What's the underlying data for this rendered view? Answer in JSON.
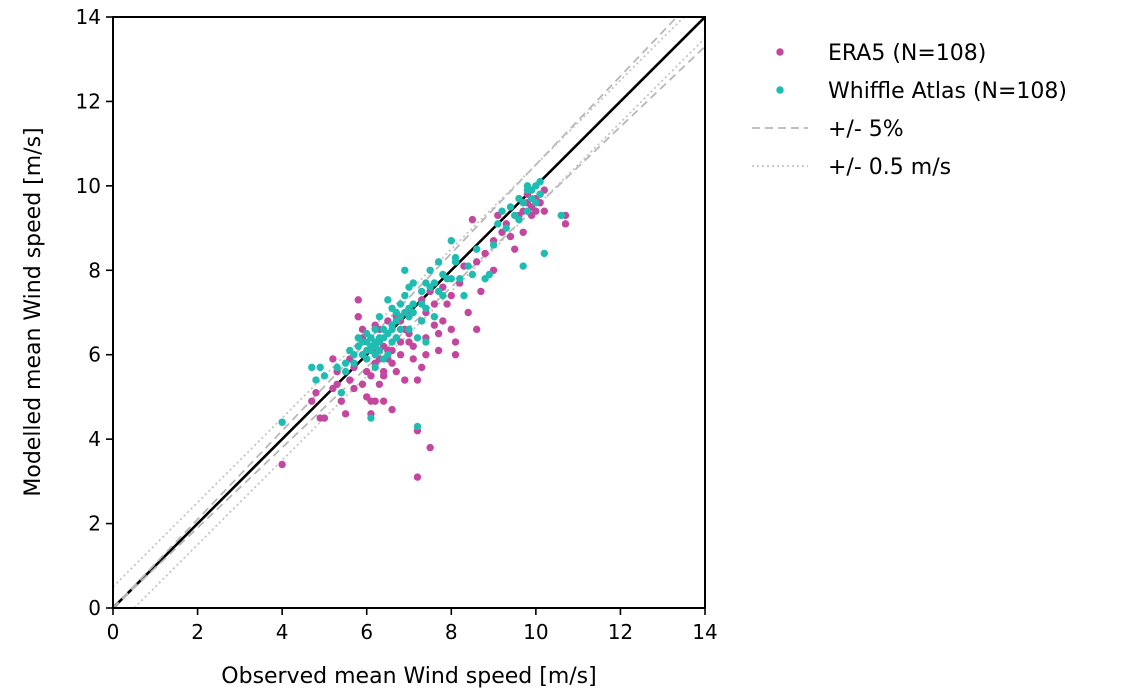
{
  "chart_data": {
    "type": "scatter",
    "title": "",
    "xlabel": "Observed mean Wind speed [m/s]",
    "ylabel": "Modelled mean Wind speed [m/s]",
    "xlim": [
      0,
      14
    ],
    "ylim": [
      0,
      14
    ],
    "xticks": [
      "0",
      "2",
      "4",
      "6",
      "8",
      "10",
      "12",
      "14"
    ],
    "yticks": [
      "0",
      "2",
      "4",
      "6",
      "8",
      "10",
      "12",
      "14"
    ],
    "grid": false,
    "legend_position": "outside-right-top",
    "reference_lines": [
      {
        "name": "1:1",
        "kind": "identity",
        "color": "#000000",
        "style": "solid"
      },
      {
        "name": "+/- 5%",
        "kind": "relative",
        "value": 0.05,
        "color": "#b8b8b8",
        "style": "dashed"
      },
      {
        "name": "+/- 0.5 m/s",
        "kind": "absolute",
        "value": 0.5,
        "color": "#c4c4c4",
        "style": "dotted"
      }
    ],
    "legend": [
      {
        "label": "ERA5 (N=108)",
        "marker": "dot",
        "color": "#c4479f"
      },
      {
        "label": "Whiffle Atlas (N=108)",
        "marker": "dot",
        "color": "#1fbdb1"
      },
      {
        "label": "+/- 5%",
        "marker": "dashed-line",
        "color": "#b8b8b8"
      },
      {
        "label": "+/- 0.5 m/s",
        "marker": "dotted-line",
        "color": "#c4c4c4"
      }
    ],
    "series": [
      {
        "name": "ERA5 (N=108)",
        "color": "#c4479f",
        "points": [
          [
            4.0,
            3.4
          ],
          [
            4.7,
            4.9
          ],
          [
            4.8,
            5.1
          ],
          [
            4.9,
            4.5
          ],
          [
            5.0,
            4.5
          ],
          [
            5.2,
            5.2
          ],
          [
            5.3,
            5.6
          ],
          [
            5.3,
            5.3
          ],
          [
            5.4,
            4.9
          ],
          [
            5.5,
            4.6
          ],
          [
            5.6,
            5.4
          ],
          [
            5.7,
            5.2
          ],
          [
            5.7,
            5.7
          ],
          [
            5.8,
            7.3
          ],
          [
            5.8,
            6.9
          ],
          [
            5.9,
            6.6
          ],
          [
            5.9,
            5.3
          ],
          [
            6.0,
            5.6
          ],
          [
            6.0,
            5.9
          ],
          [
            6.0,
            5.0
          ],
          [
            6.1,
            4.6
          ],
          [
            6.1,
            4.9
          ],
          [
            6.1,
            5.5
          ],
          [
            6.2,
            5.8
          ],
          [
            6.2,
            6.1
          ],
          [
            6.2,
            4.9
          ],
          [
            6.3,
            5.9
          ],
          [
            6.3,
            5.3
          ],
          [
            6.3,
            6.6
          ],
          [
            6.4,
            5.5
          ],
          [
            6.4,
            6.2
          ],
          [
            6.4,
            4.9
          ],
          [
            6.5,
            5.9
          ],
          [
            6.5,
            6.8
          ],
          [
            6.6,
            5.8
          ],
          [
            6.6,
            6.1
          ],
          [
            6.6,
            4.7
          ],
          [
            6.7,
            6.4
          ],
          [
            6.7,
            6.9
          ],
          [
            6.8,
            6.0
          ],
          [
            6.8,
            6.3
          ],
          [
            6.9,
            5.4
          ],
          [
            7.0,
            7.0
          ],
          [
            7.0,
            6.5
          ],
          [
            7.1,
            6.2
          ],
          [
            7.1,
            5.9
          ],
          [
            7.2,
            5.4
          ],
          [
            7.2,
            4.2
          ],
          [
            7.2,
            3.1
          ],
          [
            7.3,
            6.8
          ],
          [
            7.3,
            5.7
          ],
          [
            7.4,
            6.4
          ],
          [
            7.4,
            6.0
          ],
          [
            7.5,
            3.8
          ],
          [
            7.5,
            7.5
          ],
          [
            7.6,
            6.7
          ],
          [
            7.7,
            6.5
          ],
          [
            7.7,
            6.1
          ],
          [
            7.8,
            6.8
          ],
          [
            7.9,
            7.2
          ],
          [
            8.0,
            6.6
          ],
          [
            8.1,
            6.3
          ],
          [
            8.1,
            6.0
          ],
          [
            8.2,
            7.7
          ],
          [
            8.4,
            7.0
          ],
          [
            8.5,
            9.2
          ],
          [
            8.6,
            6.6
          ],
          [
            8.7,
            7.5
          ],
          [
            8.8,
            8.4
          ],
          [
            9.0,
            8.0
          ],
          [
            9.2,
            8.9
          ],
          [
            9.4,
            8.8
          ],
          [
            9.5,
            8.5
          ],
          [
            9.6,
            9.3
          ],
          [
            9.7,
            9.4
          ],
          [
            9.7,
            8.9
          ],
          [
            9.8,
            9.6
          ],
          [
            9.8,
            9.8
          ],
          [
            9.9,
            9.5
          ],
          [
            9.9,
            9.3
          ],
          [
            10.0,
            9.7
          ],
          [
            10.0,
            9.4
          ],
          [
            10.1,
            9.8
          ],
          [
            10.1,
            9.6
          ],
          [
            10.2,
            9.4
          ],
          [
            10.2,
            9.9
          ],
          [
            10.7,
            9.1
          ],
          [
            10.7,
            9.3
          ],
          [
            6.5,
            6.1
          ],
          [
            6.9,
            6.6
          ],
          [
            7.6,
            7.2
          ],
          [
            8.3,
            8.1
          ],
          [
            5.9,
            6.4
          ],
          [
            6.2,
            6.7
          ],
          [
            7.0,
            6.3
          ],
          [
            7.4,
            7.0
          ],
          [
            5.6,
            5.9
          ],
          [
            6.7,
            5.6
          ],
          [
            8.0,
            7.4
          ],
          [
            9.1,
            9.3
          ],
          [
            9.3,
            9.1
          ],
          [
            6.4,
            5.6
          ],
          [
            7.8,
            7.6
          ],
          [
            5.2,
            5.9
          ],
          [
            6.8,
            6.8
          ],
          [
            7.3,
            7.3
          ],
          [
            8.6,
            8.2
          ],
          [
            9.0,
            8.7
          ]
        ]
      },
      {
        "name": "Whiffle Atlas (N=108)",
        "color": "#1fbdb1",
        "points": [
          [
            4.0,
            4.4
          ],
          [
            4.7,
            5.7
          ],
          [
            4.8,
            5.4
          ],
          [
            4.9,
            5.7
          ],
          [
            5.0,
            5.5
          ],
          [
            5.3,
            5.7
          ],
          [
            5.4,
            5.1
          ],
          [
            5.5,
            5.6
          ],
          [
            5.6,
            6.1
          ],
          [
            5.7,
            6.0
          ],
          [
            5.8,
            6.4
          ],
          [
            5.8,
            6.2
          ],
          [
            5.9,
            6.0
          ],
          [
            6.0,
            6.3
          ],
          [
            6.0,
            6.1
          ],
          [
            6.0,
            5.9
          ],
          [
            6.1,
            6.2
          ],
          [
            6.1,
            6.4
          ],
          [
            6.1,
            4.5
          ],
          [
            6.2,
            6.0
          ],
          [
            6.2,
            6.3
          ],
          [
            6.2,
            6.6
          ],
          [
            6.3,
            6.1
          ],
          [
            6.3,
            6.4
          ],
          [
            6.3,
            6.9
          ],
          [
            6.4,
            5.9
          ],
          [
            6.4,
            6.6
          ],
          [
            6.5,
            7.3
          ],
          [
            6.5,
            6.0
          ],
          [
            6.6,
            6.7
          ],
          [
            6.6,
            7.1
          ],
          [
            6.7,
            6.4
          ],
          [
            6.7,
            7.0
          ],
          [
            6.8,
            7.2
          ],
          [
            6.8,
            6.6
          ],
          [
            6.9,
            8.0
          ],
          [
            6.9,
            7.4
          ],
          [
            7.0,
            6.9
          ],
          [
            7.0,
            7.6
          ],
          [
            7.1,
            7.2
          ],
          [
            7.1,
            7.7
          ],
          [
            7.2,
            6.4
          ],
          [
            7.2,
            4.3
          ],
          [
            7.3,
            6.8
          ],
          [
            7.3,
            7.5
          ],
          [
            7.4,
            7.1
          ],
          [
            7.4,
            6.3
          ],
          [
            7.5,
            8.0
          ],
          [
            7.5,
            7.6
          ],
          [
            7.6,
            6.9
          ],
          [
            7.7,
            8.2
          ],
          [
            7.7,
            7.5
          ],
          [
            7.8,
            7.9
          ],
          [
            7.9,
            7.8
          ],
          [
            8.0,
            8.7
          ],
          [
            8.0,
            7.8
          ],
          [
            8.1,
            8.2
          ],
          [
            8.2,
            7.8
          ],
          [
            8.3,
            7.4
          ],
          [
            8.5,
            7.9
          ],
          [
            8.6,
            8.5
          ],
          [
            8.8,
            7.8
          ],
          [
            8.9,
            7.9
          ],
          [
            9.0,
            8.6
          ],
          [
            9.1,
            9.1
          ],
          [
            9.3,
            9.0
          ],
          [
            9.5,
            9.3
          ],
          [
            9.6,
            9.2
          ],
          [
            9.7,
            9.6
          ],
          [
            9.7,
            8.1
          ],
          [
            9.8,
            9.9
          ],
          [
            9.8,
            9.4
          ],
          [
            9.8,
            10.0
          ],
          [
            9.9,
            9.7
          ],
          [
            9.9,
            9.9
          ],
          [
            10.0,
            9.6
          ],
          [
            10.0,
            10.0
          ],
          [
            10.1,
            9.8
          ],
          [
            10.1,
            10.1
          ],
          [
            10.2,
            8.4
          ],
          [
            10.6,
            9.3
          ],
          [
            5.9,
            6.3
          ],
          [
            6.0,
            6.5
          ],
          [
            6.1,
            6.1
          ],
          [
            6.2,
            6.2
          ],
          [
            6.3,
            6.3
          ],
          [
            6.4,
            6.4
          ],
          [
            6.5,
            6.5
          ],
          [
            6.6,
            6.6
          ],
          [
            6.7,
            6.8
          ],
          [
            6.8,
            6.9
          ],
          [
            6.9,
            7.0
          ],
          [
            7.0,
            7.1
          ],
          [
            7.1,
            7.0
          ],
          [
            7.3,
            7.2
          ],
          [
            7.6,
            7.7
          ],
          [
            7.8,
            7.4
          ],
          [
            8.4,
            8.1
          ],
          [
            9.2,
            9.4
          ],
          [
            9.4,
            9.5
          ],
          [
            5.5,
            5.8
          ],
          [
            5.7,
            5.8
          ],
          [
            6.2,
            5.7
          ],
          [
            6.6,
            6.3
          ],
          [
            7.0,
            6.6
          ],
          [
            7.4,
            7.7
          ],
          [
            8.1,
            8.3
          ],
          [
            9.6,
            9.7
          ]
        ]
      }
    ]
  }
}
